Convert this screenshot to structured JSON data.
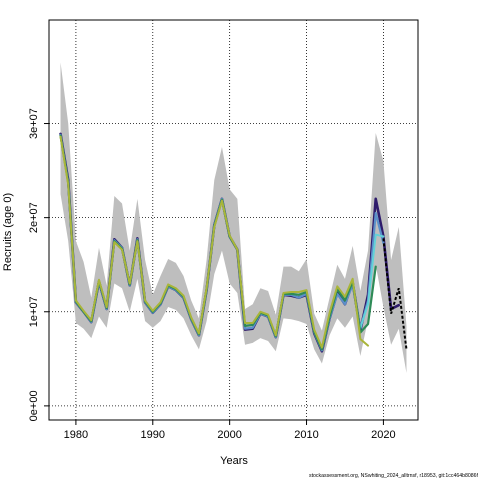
{
  "chart_data": {
    "type": "line",
    "xlabel": "Years",
    "ylabel": "Recruits (age 0)",
    "xlim": [
      1976.5,
      2024.5
    ],
    "ylim": [
      -1500000,
      41000000
    ],
    "x_ticks": [
      1980,
      1990,
      2000,
      2010,
      2020
    ],
    "y_ticks": [
      {
        "value": 0,
        "label": "0e+00"
      },
      {
        "value": 10000000,
        "label": "1e+07"
      },
      {
        "value": 20000000,
        "label": "2e+07"
      },
      {
        "value": 30000000,
        "label": "3e+07"
      }
    ],
    "grid": true,
    "confidence_band": {
      "color": "#bebebe",
      "x": [
        1978,
        1979,
        1980,
        1981,
        1982,
        1983,
        1984,
        1985,
        1986,
        1987,
        1988,
        1989,
        1990,
        1991,
        1992,
        1993,
        1994,
        1995,
        1996,
        1997,
        1998,
        1999,
        2000,
        2001,
        2002,
        2003,
        2004,
        2005,
        2006,
        2007,
        2008,
        2009,
        2010,
        2011,
        2012,
        2013,
        2014,
        2015,
        2016,
        2017,
        2018,
        2019,
        2020,
        2021,
        2022,
        2023
      ],
      "lower": [
        22500000,
        17500000,
        8800000,
        8200000,
        7200000,
        9500000,
        8300000,
        13000000,
        12500000,
        10000000,
        13500000,
        9000000,
        8300000,
        9000000,
        10500000,
        10200000,
        9300000,
        7500000,
        6000000,
        9000000,
        14000000,
        16500000,
        13000000,
        12000000,
        6500000,
        6700000,
        7200000,
        6900000,
        5800000,
        9300000,
        9200000,
        9000000,
        8700000,
        6000000,
        4500000,
        7500000,
        9300000,
        8300000,
        9500000,
        5300000,
        9200000,
        15000000,
        10500000,
        6500000,
        8200000,
        3500000
      ],
      "upper": [
        36500000,
        30000000,
        17500000,
        15300000,
        11500000,
        16800000,
        12800000,
        22300000,
        21500000,
        16500000,
        22000000,
        15500000,
        11800000,
        13800000,
        15600000,
        15200000,
        13800000,
        11200000,
        9300000,
        15500000,
        24000000,
        27500000,
        23000000,
        22000000,
        10300000,
        10800000,
        12500000,
        12200000,
        9700000,
        14800000,
        14800000,
        14300000,
        15600000,
        9800000,
        8000000,
        11500000,
        15000000,
        13500000,
        17000000,
        12200000,
        16500000,
        29000000,
        26000000,
        15500000,
        19000000,
        8500000
      ]
    },
    "series": [
      {
        "color": "#2e1b6b",
        "width": 2.6,
        "x": [
          1978,
          1979,
          1980,
          1981,
          1982,
          1983,
          1984,
          1985,
          1986,
          1987,
          1988,
          1989,
          1990,
          1991,
          1992,
          1993,
          1994,
          1995,
          1996,
          1997,
          1998,
          1999,
          2000,
          2001,
          2002,
          2003,
          2004,
          2005,
          2006,
          2007,
          2008,
          2009,
          2010,
          2011,
          2012,
          2013,
          2014,
          2015,
          2016,
          2017,
          2018,
          2019,
          2020,
          2021,
          2022
        ],
        "values": [
          28900000,
          24000000,
          11000000,
          10000000,
          8900000,
          13200000,
          10300000,
          17700000,
          16800000,
          12800000,
          17800000,
          11000000,
          9900000,
          10800000,
          12700000,
          12300000,
          11500000,
          9200000,
          7500000,
          12300000,
          19200000,
          22000000,
          18000000,
          16600000,
          8100000,
          8200000,
          9800000,
          9500000,
          7300000,
          11800000,
          11700000,
          11500000,
          11800000,
          7700000,
          5800000,
          9300000,
          12000000,
          10800000,
          13100000,
          8000000,
          11800000,
          22000000,
          18000000,
          10300000,
          10700000
        ]
      },
      {
        "color": "#5b8fc9",
        "width": 2.2,
        "x": [
          1978,
          1979,
          1980,
          1981,
          1982,
          1983,
          1984,
          1985,
          1986,
          1987,
          1988,
          1989,
          1990,
          1991,
          1992,
          1993,
          1994,
          1995,
          1996,
          1997,
          1998,
          1999,
          2000,
          2001,
          2002,
          2003,
          2004,
          2005,
          2006,
          2007,
          2008,
          2009,
          2010,
          2011,
          2012,
          2013,
          2014,
          2015,
          2016,
          2017,
          2018,
          2019,
          2020
        ],
        "values": [
          28800000,
          23800000,
          11000000,
          10000000,
          8900000,
          13200000,
          10300000,
          17600000,
          16800000,
          12800000,
          17700000,
          11000000,
          9900000,
          10800000,
          12700000,
          12300000,
          11500000,
          9200000,
          7500000,
          12300000,
          19200000,
          22000000,
          18000000,
          16600000,
          8200000,
          8300000,
          9800000,
          9500000,
          7300000,
          11800000,
          11800000,
          11500000,
          11900000,
          7800000,
          5900000,
          9300000,
          11900000,
          10800000,
          12900000,
          8200000,
          11200000,
          20500000,
          17300000
        ]
      },
      {
        "color": "#62d2d8",
        "width": 2.0,
        "x": [
          2017,
          2018,
          2019,
          2020
        ],
        "values": [
          8300000,
          10800000,
          18200000,
          18000000
        ]
      },
      {
        "color": "#2e8b57",
        "width": 2.2,
        "x": [
          1978,
          1979,
          1980,
          1981,
          1982,
          1983,
          1984,
          1985,
          1986,
          1987,
          1988,
          1989,
          1990,
          1991,
          1992,
          1993,
          1994,
          1995,
          1996,
          1997,
          1998,
          1999,
          2000,
          2001,
          2002,
          2003,
          2004,
          2005,
          2006,
          2007,
          2008,
          2009,
          2010,
          2011,
          2012,
          2013,
          2014,
          2015,
          2016,
          2017,
          2018,
          2019
        ],
        "values": [
          28700000,
          23700000,
          11100000,
          10000000,
          9000000,
          13300000,
          10400000,
          17500000,
          16700000,
          12900000,
          17600000,
          11100000,
          10000000,
          10900000,
          12800000,
          12400000,
          11600000,
          9300000,
          7600000,
          12400000,
          19100000,
          21900000,
          18000000,
          16600000,
          8500000,
          8600000,
          9900000,
          9600000,
          7400000,
          11900000,
          11900000,
          11800000,
          12100000,
          7900000,
          6000000,
          9500000,
          12400000,
          11200000,
          13200000,
          7800000,
          8700000,
          14800000
        ]
      },
      {
        "color": "#a9b53a",
        "width": 2.0,
        "x": [
          1978,
          1979,
          1980,
          1981,
          1982,
          1983,
          1984,
          1985,
          1986,
          1987,
          1988,
          1989,
          1990,
          1991,
          1992,
          1993,
          1994,
          1995,
          1996,
          1997,
          1998,
          1999,
          2000,
          2001,
          2002,
          2003,
          2004,
          2005,
          2006,
          2007,
          2008,
          2009,
          2010,
          2011,
          2012,
          2013,
          2014,
          2015,
          2016,
          2017,
          2018
        ],
        "values": [
          28600000,
          23500000,
          11200000,
          10100000,
          9100000,
          13400000,
          10500000,
          17400000,
          16600000,
          13000000,
          17500000,
          11200000,
          10100000,
          11000000,
          12900000,
          12500000,
          11700000,
          9400000,
          7700000,
          12500000,
          19000000,
          21800000,
          18100000,
          16600000,
          8800000,
          8800000,
          10000000,
          9700000,
          7500000,
          12000000,
          12100000,
          12100000,
          12300000,
          8100000,
          6200000,
          9900000,
          12700000,
          11600000,
          13500000,
          7100000,
          6400000
        ]
      }
    ],
    "projection": {
      "style": "dashed",
      "color": "#000000",
      "x": [
        2020,
        2021,
        2022,
        2023
      ],
      "values": [
        17800000,
        9800000,
        12500000,
        6000000
      ]
    }
  },
  "footer": {
    "source": "stockassessment.org, NSwhiting_2024_alltrnsf, r18953, git:1cc464b8086f"
  }
}
